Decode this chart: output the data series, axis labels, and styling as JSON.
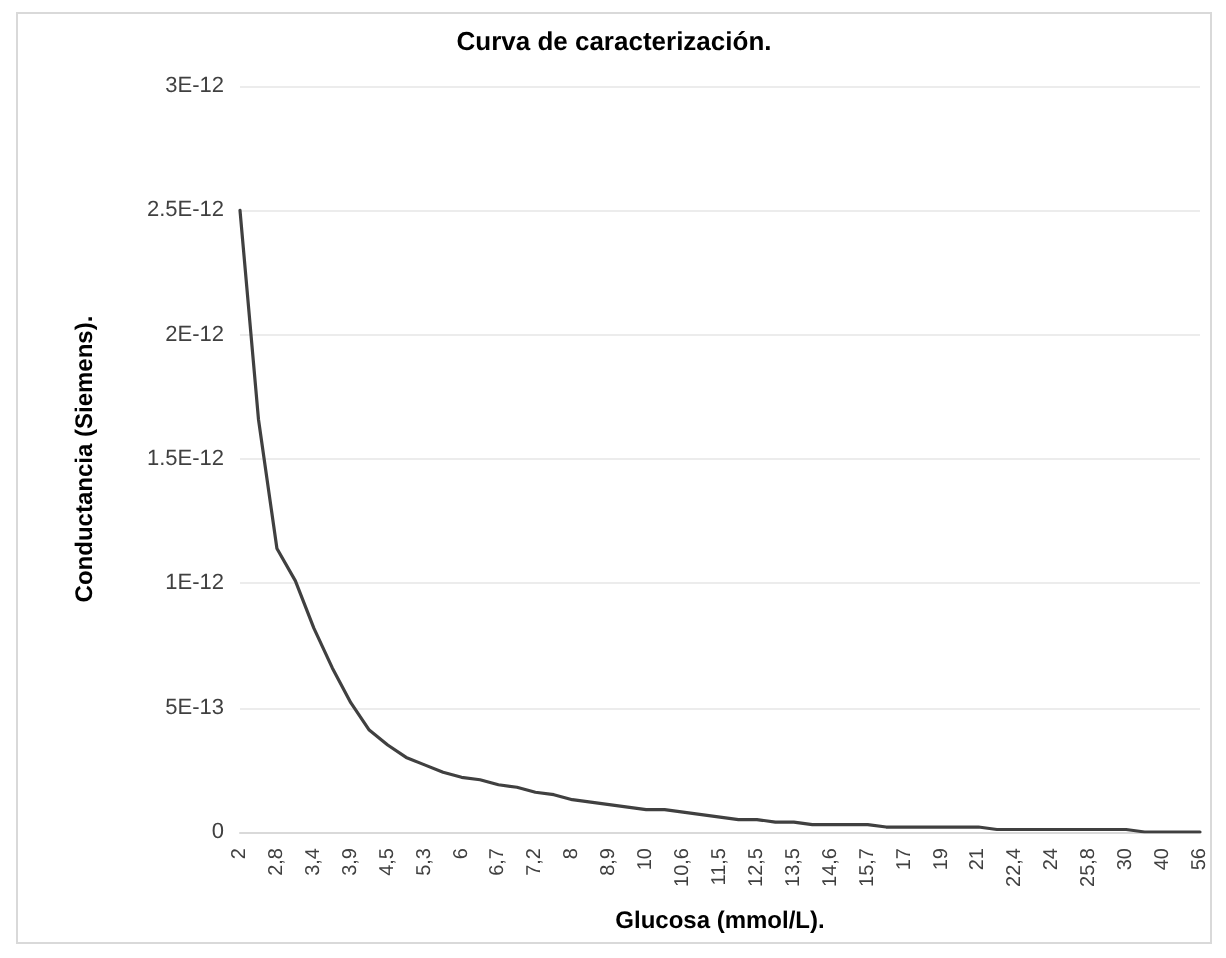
{
  "chart_data": {
    "type": "line",
    "title": "Curva de caracterización.",
    "xlabel": "Glucosa (mmol/L).",
    "ylabel": "Conductancia (Siemens).",
    "categories": [
      "2",
      null,
      "2,8",
      null,
      "3,4",
      null,
      "3,9",
      null,
      "4,5",
      null,
      "5,3",
      null,
      "6",
      null,
      "6,7",
      null,
      "7,2",
      null,
      "8",
      null,
      "8,9",
      null,
      "10",
      null,
      "10,6",
      null,
      "11,5",
      null,
      "12,5",
      null,
      "13,5",
      null,
      "14,6",
      null,
      "15,7",
      null,
      "17",
      null,
      "19",
      null,
      "21",
      null,
      "22,4",
      null,
      "24",
      null,
      "25,8",
      null,
      "30",
      null,
      "40",
      null,
      "56"
    ],
    "series": [
      {
        "color": "#404040",
        "values": [
          2.5e-12,
          1.66e-12,
          1.14e-12,
          1.01e-12,
          8.2e-13,
          6.6e-13,
          5.2e-13,
          4.1e-13,
          3.5e-13,
          3e-13,
          2.7e-13,
          2.4e-13,
          2.2e-13,
          2.1e-13,
          1.9e-13,
          1.8e-13,
          1.6e-13,
          1.5e-13,
          1.3e-13,
          1.2e-13,
          1.1e-13,
          1e-13,
          9e-14,
          9e-14,
          8e-14,
          7e-14,
          6e-14,
          5e-14,
          5e-14,
          4e-14,
          4e-14,
          3e-14,
          3e-14,
          3e-14,
          3e-14,
          2e-14,
          2e-14,
          2e-14,
          2e-14,
          2e-14,
          2e-14,
          1e-14,
          1e-14,
          1e-14,
          1e-14,
          1e-14,
          1e-14,
          1e-14,
          1e-14,
          0,
          0,
          0,
          0
        ]
      }
    ],
    "ylim": [
      0,
      3e-12
    ],
    "yticks": [
      {
        "value": 0,
        "label": "0"
      },
      {
        "value": 5e-13,
        "label": "5E-13"
      },
      {
        "value": 1e-12,
        "label": "1E-12"
      },
      {
        "value": 1.5e-12,
        "label": "1.5E-12"
      },
      {
        "value": 2e-12,
        "label": "2E-12"
      },
      {
        "value": 2.5e-12,
        "label": "2.5E-12"
      },
      {
        "value": 3e-12,
        "label": "3E-12"
      }
    ],
    "grid": "y",
    "marker": "none",
    "line_style": "solid"
  }
}
